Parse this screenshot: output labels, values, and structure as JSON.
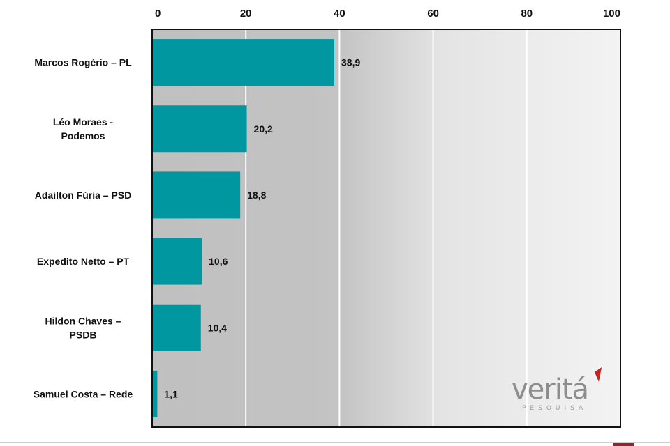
{
  "chart_data": {
    "type": "bar",
    "orientation": "horizontal",
    "categories": [
      "Marcos Rogério – PL",
      "Léo Moraes - Podemos",
      "Adailton Fúria – PSD",
      "Expedito Netto – PT",
      "Hildon Chaves – PSDB",
      "Samuel Costa – Rede"
    ],
    "category_label_lines": [
      [
        "Marcos Rogério – PL"
      ],
      [
        "Léo Moraes -",
        "Podemos"
      ],
      [
        "Adailton Fúria – PSD"
      ],
      [
        "Expedito Netto – PT"
      ],
      [
        "Hildon Chaves –",
        "PSDB"
      ],
      [
        "Samuel Costa – Rede"
      ]
    ],
    "values": [
      38.9,
      20.2,
      18.8,
      10.6,
      10.4,
      1.1
    ],
    "value_labels": [
      "38,9",
      "20,2",
      "18,8",
      "10,6",
      "10,4",
      "1,1"
    ],
    "xlim": [
      0,
      100
    ],
    "xticks": [
      0,
      20,
      40,
      60,
      80,
      100
    ],
    "axis_position": "top",
    "grid": true,
    "legend": "none",
    "bar_color": "#0097a0",
    "background_gradient": [
      "#c0c0c0",
      "#ececec"
    ]
  },
  "logo": {
    "word": "veritá",
    "sub": "PESQUISA",
    "accent_color": "#cc1f1f"
  },
  "footer_accent_color": "#8b2a2a"
}
